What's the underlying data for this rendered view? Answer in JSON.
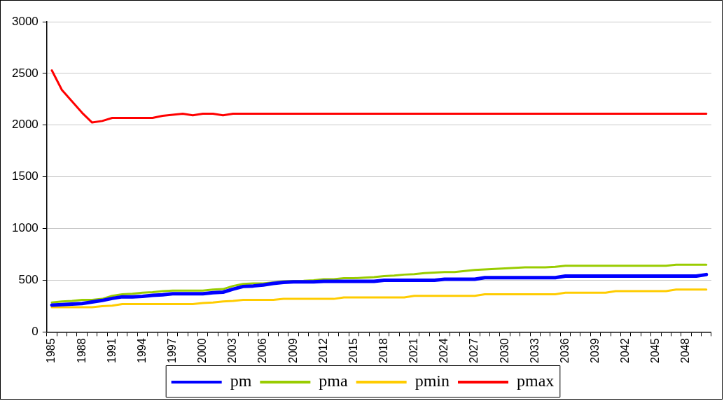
{
  "chart_data": {
    "type": "line",
    "categories": [
      "1985",
      null,
      null,
      "1988",
      null,
      null,
      "1991",
      null,
      null,
      "1994",
      null,
      null,
      "1997",
      null,
      null,
      "2000",
      null,
      null,
      "2003",
      null,
      null,
      "2006",
      null,
      null,
      "2009",
      null,
      null,
      "2012",
      null,
      null,
      "2015",
      null,
      null,
      "2018",
      null,
      null,
      "2021",
      null,
      null,
      "2024",
      null,
      null,
      "2027",
      null,
      null,
      "2030",
      null,
      null,
      "2033",
      null,
      null,
      "2036",
      null,
      null,
      "2039",
      null,
      null,
      "2042",
      null,
      null,
      "2045",
      null,
      null,
      "2048",
      null,
      null
    ],
    "series": [
      {
        "name": "pm",
        "color": "#0000ff",
        "values": [
          260,
          265,
          270,
          275,
          290,
          305,
          325,
          340,
          340,
          345,
          355,
          360,
          370,
          370,
          370,
          370,
          380,
          385,
          415,
          440,
          445,
          455,
          470,
          480,
          485,
          485,
          485,
          490,
          490,
          490,
          490,
          490,
          490,
          500,
          500,
          500,
          500,
          500,
          500,
          510,
          510,
          510,
          510,
          525,
          525,
          525,
          525,
          525,
          525,
          525,
          525,
          540,
          540,
          540,
          540,
          540,
          540,
          540,
          540,
          540,
          540,
          540,
          540,
          540,
          540,
          555
        ]
      },
      {
        "name": "pma",
        "color": "#99cc00",
        "values": [
          285,
          295,
          300,
          310,
          310,
          320,
          350,
          365,
          370,
          380,
          385,
          395,
          400,
          400,
          400,
          400,
          410,
          415,
          445,
          465,
          470,
          470,
          null,
          490,
          null,
          495,
          500,
          510,
          510,
          520,
          520,
          525,
          530,
          540,
          545,
          555,
          560,
          570,
          575,
          580,
          580,
          590,
          600,
          605,
          610,
          615,
          620,
          625,
          625,
          625,
          630,
          640,
          640,
          640,
          640,
          640,
          640,
          640,
          640,
          640,
          640,
          640,
          650,
          650,
          650,
          650
        ]
      },
      {
        "name": "pmin",
        "color": "#ffcc00",
        "values": [
          240,
          240,
          240,
          240,
          240,
          250,
          255,
          270,
          270,
          270,
          270,
          270,
          270,
          270,
          270,
          280,
          285,
          295,
          300,
          310,
          310,
          310,
          310,
          320,
          320,
          320,
          320,
          320,
          320,
          335,
          335,
          335,
          335,
          335,
          335,
          335,
          350,
          350,
          350,
          350,
          350,
          350,
          350,
          365,
          365,
          365,
          365,
          365,
          365,
          365,
          365,
          380,
          380,
          380,
          380,
          380,
          395,
          395,
          395,
          395,
          395,
          395,
          410,
          410,
          410,
          410
        ]
      },
      {
        "name": "pmax",
        "color": "#ff0000",
        "values": [
          2530,
          2340,
          2230,
          2120,
          2025,
          2040,
          2070,
          2070,
          2070,
          2070,
          2070,
          2090,
          2100,
          2110,
          2095,
          2110,
          2110,
          2095,
          2110,
          2110,
          2110,
          2110,
          2110,
          2110,
          2110,
          2110,
          2110,
          2110,
          2110,
          2110,
          2110,
          2110,
          2110,
          2110,
          2110,
          2110,
          2110,
          2110,
          2110,
          2110,
          2110,
          2110,
          2110,
          2110,
          2110,
          2110,
          2110,
          2110,
          2110,
          2110,
          2110,
          2110,
          2110,
          2110,
          2110,
          2110,
          2110,
          2110,
          2110,
          2110,
          2110,
          2110,
          2110,
          2110,
          2110,
          2110
        ]
      }
    ],
    "ylim": [
      0,
      3000
    ],
    "yticks": [
      0,
      500,
      1000,
      1500,
      2000,
      2500,
      3000
    ],
    "grid": "y",
    "legend": "bottom",
    "marker": "none",
    "line_style": "solid"
  }
}
